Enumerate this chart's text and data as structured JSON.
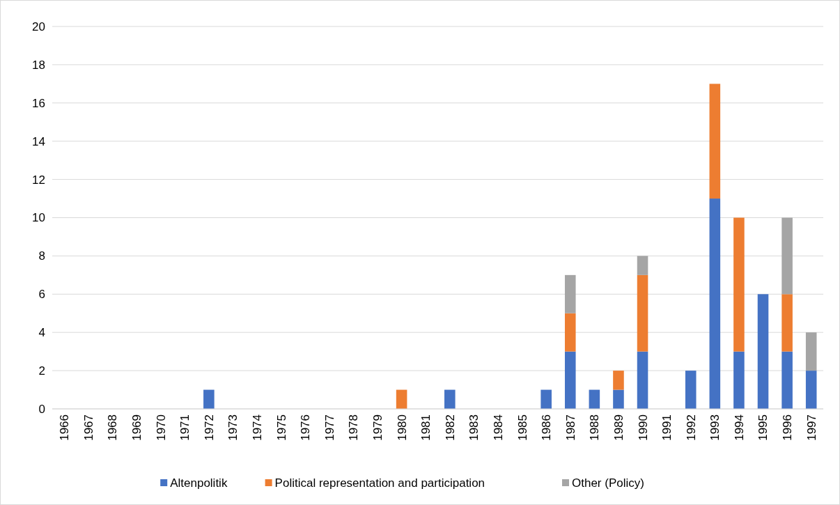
{
  "chart_data": {
    "type": "bar",
    "stacked": true,
    "categories": [
      "1966",
      "1967",
      "1968",
      "1969",
      "1970",
      "1971",
      "1972",
      "1973",
      "1974",
      "1975",
      "1976",
      "1977",
      "1978",
      "1979",
      "1980",
      "1981",
      "1982",
      "1983",
      "1984",
      "1985",
      "1986",
      "1987",
      "1988",
      "1989",
      "1990",
      "1991",
      "1992",
      "1993",
      "1994",
      "1995",
      "1996",
      "1997"
    ],
    "series": [
      {
        "name": "Altenpolitik",
        "color": "#4472c4",
        "values": [
          0,
          0,
          0,
          0,
          0,
          0,
          1,
          0,
          0,
          0,
          0,
          0,
          0,
          0,
          0,
          0,
          1,
          0,
          0,
          0,
          1,
          3,
          1,
          1,
          3,
          0,
          2,
          11,
          3,
          6,
          3,
          2
        ]
      },
      {
        "name": "Political representation and participation",
        "color": "#ed7d31",
        "values": [
          0,
          0,
          0,
          0,
          0,
          0,
          0,
          0,
          0,
          0,
          0,
          0,
          0,
          0,
          1,
          0,
          0,
          0,
          0,
          0,
          0,
          2,
          0,
          1,
          4,
          0,
          0,
          6,
          7,
          0,
          3,
          0
        ]
      },
      {
        "name": "Other (Policy)",
        "color": "#a5a5a5",
        "values": [
          0,
          0,
          0,
          0,
          0,
          0,
          0,
          0,
          0,
          0,
          0,
          0,
          0,
          0,
          0,
          0,
          0,
          0,
          0,
          0,
          0,
          2,
          0,
          0,
          1,
          0,
          0,
          0,
          0,
          0,
          4,
          2
        ]
      }
    ],
    "ylim": [
      0,
      20
    ],
    "yticks": [
      0,
      2,
      4,
      6,
      8,
      10,
      12,
      14,
      16,
      18,
      20
    ],
    "grid": "y",
    "legend": "bottom"
  }
}
